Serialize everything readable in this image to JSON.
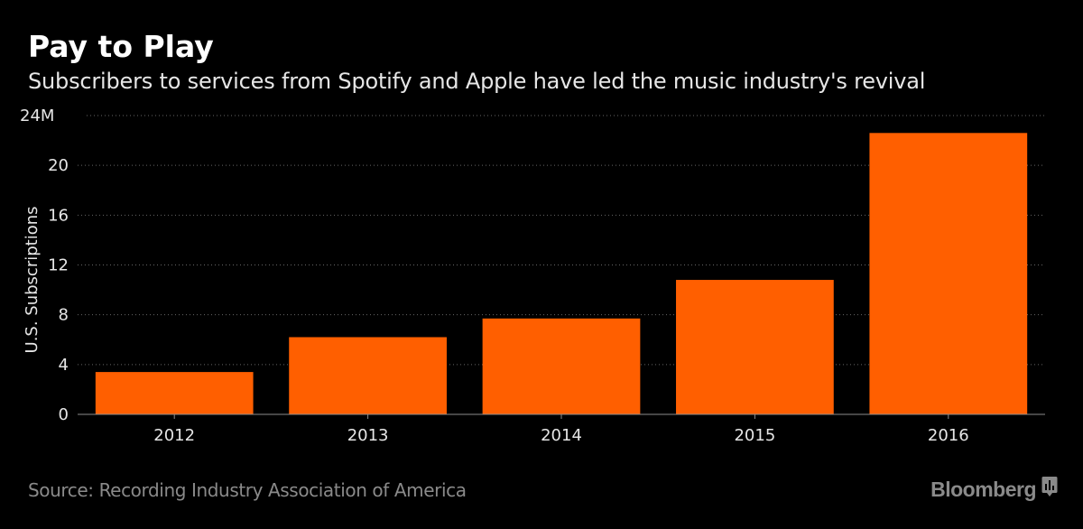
{
  "header": {
    "title": "Pay to Play",
    "subtitle": "Subscribers to services from Spotify and Apple have led the music industry's revival"
  },
  "footer": {
    "source": "Source: Recording Industry Association of America",
    "brand": "Bloomberg",
    "brand_icon": "bloomberg-chart-icon"
  },
  "colors": {
    "bar": "#ff5f00",
    "background": "#000000",
    "grid": "#666666",
    "axis": "#8c8c8c"
  },
  "chart_data": {
    "type": "bar",
    "title": "Pay to Play",
    "subtitle": "Subscribers to services from Spotify and Apple have led the music industry's revival",
    "xlabel": "",
    "ylabel": "U.S. Subscriptions",
    "categories": [
      "2012",
      "2013",
      "2014",
      "2015",
      "2016"
    ],
    "values": [
      3.4,
      6.2,
      7.7,
      10.8,
      22.6
    ],
    "unit": "M",
    "ylim": [
      0,
      24
    ],
    "yticks": [
      0,
      4,
      8,
      12,
      16,
      20,
      24
    ],
    "ytick_labels": [
      "0",
      "4",
      "8",
      "12",
      "16",
      "20",
      "24M"
    ],
    "grid": true,
    "legend": "none"
  }
}
